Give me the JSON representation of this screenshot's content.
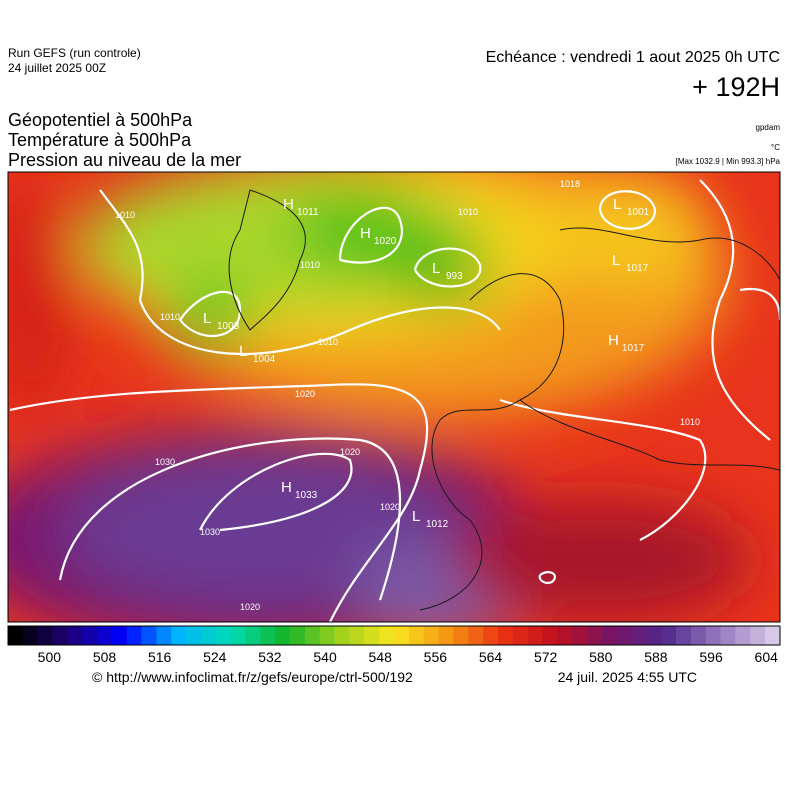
{
  "header": {
    "run": "Run GEFS (run controle)",
    "date": "24 juillet 2025 00Z",
    "echeance": "Echéance : vendredi 1 aout 2025 0h UTC",
    "lead": "+ 192H"
  },
  "layers": [
    "Géopotentiel à 500hPa",
    "Température à 500hPa",
    "Pression au niveau de la mer"
  ],
  "units": [
    "gpdam",
    "°C",
    "[Max 1032.9 | Min 993.3] hPa"
  ],
  "pressure_centers": [
    {
      "letter": "H",
      "value": "1033"
    },
    {
      "letter": "L",
      "value": "1012"
    },
    {
      "letter": "L",
      "value": "1003"
    },
    {
      "letter": "L",
      "value": "1004"
    },
    {
      "letter": "H",
      "value": "1020"
    },
    {
      "letter": "L",
      "value": "993"
    },
    {
      "letter": "H",
      "value": "1011"
    },
    {
      "letter": "L",
      "value": "1001"
    },
    {
      "letter": "L",
      "value": "1017"
    },
    {
      "letter": "H",
      "value": "1017"
    }
  ],
  "isobar_labels": [
    "1020",
    "1030",
    "1030",
    "1020",
    "1020",
    "1010",
    "1010",
    "1010",
    "1010",
    "1010",
    "1018",
    "1010",
    "1020"
  ],
  "colorbar": {
    "lim": [
      494,
      606
    ],
    "ticks": [
      500,
      508,
      516,
      524,
      532,
      540,
      548,
      556,
      564,
      572,
      580,
      588,
      596,
      604
    ]
  },
  "footer": {
    "url": "© http://www.infoclimat.fr/z/gefs/europe/ctrl-500/192",
    "time": "24 juil. 2025  4:55 UTC"
  }
}
